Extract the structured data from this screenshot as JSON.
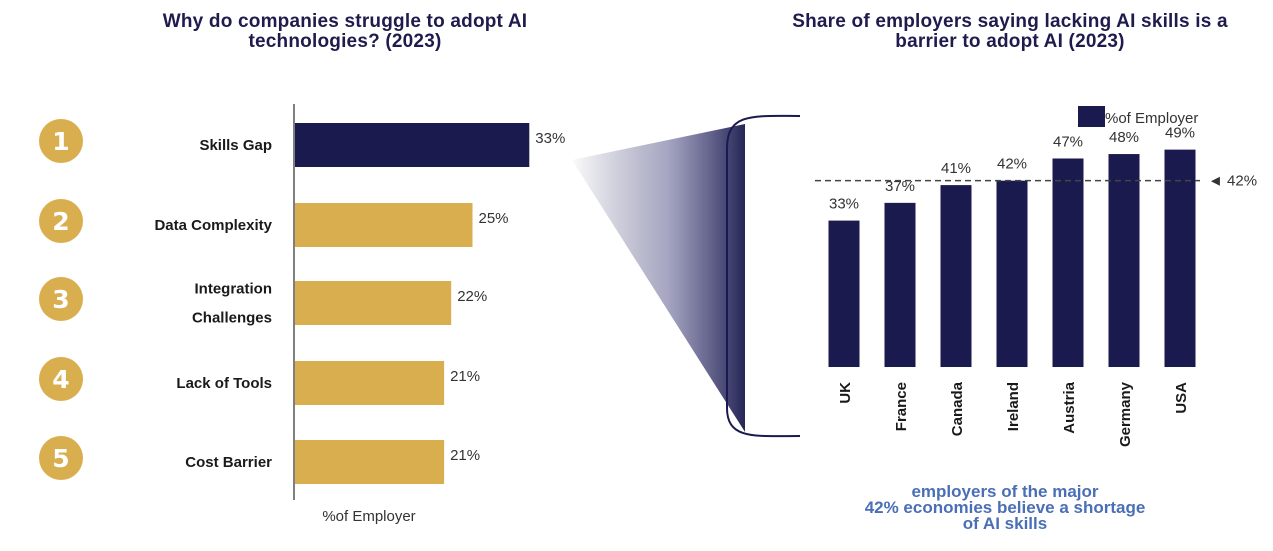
{
  "colors": {
    "title": "#1f1b4d",
    "navy": "#1b1a4e",
    "gold": "#d9ae4f",
    "badge": "#d9ae4f",
    "footnote": "#4a6fb5"
  },
  "chart_data": [
    {
      "type": "bar",
      "orientation": "horizontal",
      "title": "Why do companies struggle to adopt AI technologies? (2023)",
      "xlabel": "%of Employer",
      "ranks": [
        "1",
        "2",
        "3",
        "4",
        "5"
      ],
      "categories": [
        "Skills Gap",
        "Data Complexity",
        "Integration Challenges",
        "Lack of Tools",
        "Cost Barrier"
      ],
      "category_lines": [
        [
          "Skills Gap"
        ],
        [
          "Data Complexity"
        ],
        [
          "Integration",
          "Challenges"
        ],
        [
          "Lack of Tools"
        ],
        [
          "Cost Barrier"
        ]
      ],
      "values": [
        33,
        25,
        22,
        21,
        21
      ],
      "value_labels": [
        "33%",
        "25%",
        "22%",
        "21%",
        "21%"
      ],
      "highlight_index": 0
    },
    {
      "type": "bar",
      "title": "Share of employers saying lacking AI skills is a barrier to adopt AI (2023)",
      "categories": [
        "UK",
        "France",
        "Canada",
        "Ireland",
        "Austria",
        "Germany",
        "USA"
      ],
      "series": [
        {
          "name": "%of Employer",
          "values": [
            33,
            37,
            41,
            42,
            47,
            48,
            49
          ]
        }
      ],
      "value_labels": [
        "33%",
        "37%",
        "41%",
        "42%",
        "47%",
        "48%",
        "49%"
      ],
      "reference_line": {
        "value": 42,
        "label": "◄ 42%"
      },
      "ylim": [
        0,
        55
      ],
      "legend_position": "top-right",
      "grid": false
    }
  ],
  "footnote": {
    "line1": "employers of the major",
    "line2": "42% economies believe a shortage",
    "line3": "of AI skills"
  }
}
